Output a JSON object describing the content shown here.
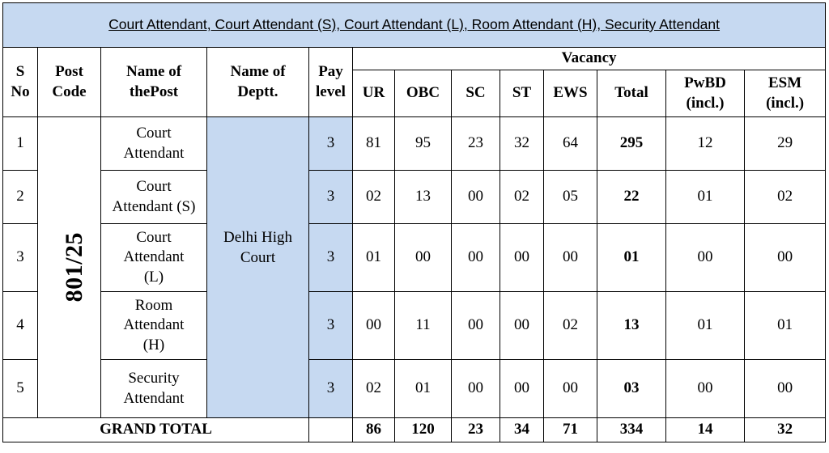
{
  "title": "Court Attendant, Court Attendant (S), Court Attendant (L), Room Attendant (H), Security Attendant",
  "headers": {
    "s_no": "S No",
    "post_code": "Post Code",
    "name_of_post": "Name of thePost",
    "name_of_dept": "Name of Deptt.",
    "pay_level": "Pay level",
    "vacancy": "Vacancy",
    "ur": "UR",
    "obc": "OBC",
    "sc": "SC",
    "st": "ST",
    "ews": "EWS",
    "total": "Total",
    "pwbd": "PwBD (incl.)",
    "esm": "ESM (incl.)"
  },
  "post_code": "801/25",
  "department": "Delhi High Court",
  "rows": [
    {
      "s_no": "1",
      "post": "Court Attendant",
      "pay": "3",
      "ur": "81",
      "obc": "95",
      "sc": "23",
      "st": "32",
      "ews": "64",
      "total": "295",
      "pwbd": "12",
      "esm": "29"
    },
    {
      "s_no": "2",
      "post": "Court Attendant (S)",
      "pay": "3",
      "ur": "02",
      "obc": "13",
      "sc": "00",
      "st": "02",
      "ews": "05",
      "total": "22",
      "pwbd": "01",
      "esm": "02"
    },
    {
      "s_no": "3",
      "post": "Court Attendant (L)",
      "pay": "3",
      "ur": "01",
      "obc": "00",
      "sc": "00",
      "st": "00",
      "ews": "00",
      "total": "01",
      "pwbd": "00",
      "esm": "00"
    },
    {
      "s_no": "4",
      "post": "Room Attendant (H)",
      "pay": "3",
      "ur": "00",
      "obc": "11",
      "sc": "00",
      "st": "00",
      "ews": "02",
      "total": "13",
      "pwbd": "01",
      "esm": "01"
    },
    {
      "s_no": "5",
      "post": "Security Attendant",
      "pay": "3",
      "ur": "02",
      "obc": "01",
      "sc": "00",
      "st": "00",
      "ews": "00",
      "total": "03",
      "pwbd": "00",
      "esm": "00"
    }
  ],
  "grand_total": {
    "label": "GRAND TOTAL",
    "ur": "86",
    "obc": "120",
    "sc": "23",
    "st": "34",
    "ews": "71",
    "total": "334",
    "pwbd": "14",
    "esm": "32"
  }
}
